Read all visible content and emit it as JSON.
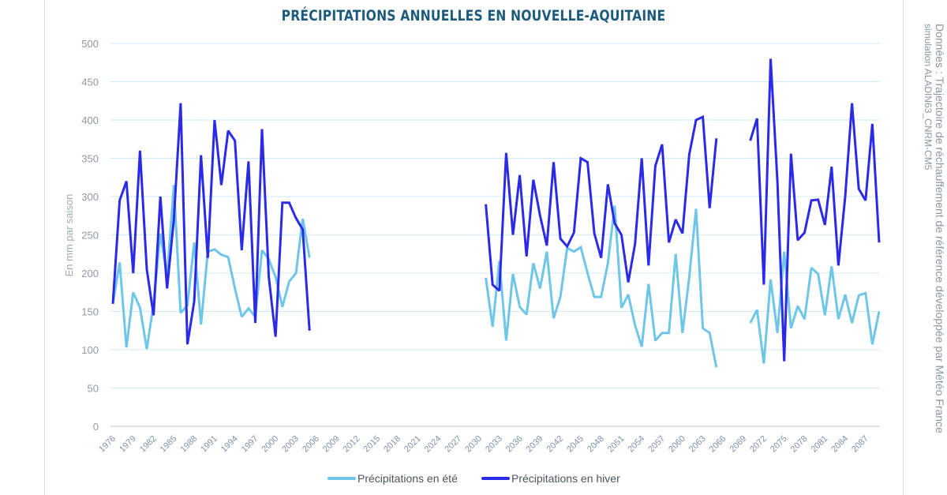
{
  "chart_data": {
    "type": "line",
    "title": "PRÉCIPITATIONS ANNUELLES EN NOUVELLE-AQUITAINE",
    "ylabel": "En mm par saison",
    "xlabel": "",
    "ylim": [
      0,
      500
    ],
    "xlim": [
      1976,
      2089
    ],
    "yticks": [
      0,
      50,
      100,
      150,
      200,
      250,
      300,
      350,
      400,
      450,
      500
    ],
    "xticks": [
      1976,
      1979,
      1982,
      1985,
      1988,
      1991,
      1994,
      1997,
      2000,
      2003,
      2006,
      2009,
      2012,
      2015,
      2018,
      2021,
      2024,
      2027,
      2030,
      2033,
      2036,
      2039,
      2042,
      2045,
      2048,
      2051,
      2054,
      2057,
      2060,
      2063,
      2066,
      2069,
      2072,
      2075,
      2078,
      2081,
      2084,
      2087
    ],
    "grid": true,
    "legend_position": "bottom",
    "source": [
      "Données : Trajectoire de réchauffement de référence développée par Météo France",
      "simulation ALADIN63_CNRM-CM5"
    ],
    "series": [
      {
        "name": "Précipitations en été",
        "color": "#6ec6e8",
        "segments": [
          {
            "x_start": 1976,
            "values": [
              160,
              214,
              103,
              175,
              155,
              101,
              160,
              252,
              195,
              315,
              148,
              158,
              240,
              133,
              228,
              231,
              224,
              221,
              180,
              143,
              154,
              143,
              230,
              218,
              195,
              156,
              189,
              200,
              271,
              220
            ]
          },
          {
            "x_start": 2031,
            "values": [
              194,
              130,
              216,
              112,
              199,
              156,
              146,
              213,
              180,
              228,
              141,
              169,
              233,
              228,
              234,
              200,
              169,
              169,
              213,
              288,
              155,
              172,
              132,
              104,
              186,
              112,
              122,
              122,
              225,
              122,
              195,
              284,
              128,
              122,
              77
            ]
          },
          {
            "x_start": 2070,
            "values": [
              135,
              152,
              82,
              192,
              122,
              228,
              128,
              157,
              140,
              207,
              199,
              145,
              209,
              140,
              172,
              135,
              171,
              174,
              107,
              150
            ]
          }
        ]
      },
      {
        "name": "Précipitations en hiver",
        "color": "#2a2ae8",
        "segments": [
          {
            "x_start": 1976,
            "values": [
              160,
              295,
              320,
              200,
              360,
              205,
              145,
              300,
              180,
              270,
              422,
              107,
              163,
              354,
              220,
              400,
              315,
              386,
              373,
              230,
              346,
              135,
              388,
              195,
              117,
              292,
              292,
              272,
              257,
              125
            ]
          },
          {
            "x_start": 2031,
            "values": [
              290,
              185,
              177,
              357,
              250,
              328,
              222,
              322,
              275,
              236,
              345,
              245,
              235,
              253,
              350,
              345,
              252,
              220,
              316,
              265,
              250,
              188,
              238,
              350,
              210,
              340,
              368,
              240,
              270,
              252,
              355,
              400,
              404,
              285,
              376
            ]
          },
          {
            "x_start": 2070,
            "values": [
              373,
              402,
              185,
              480,
              320,
              85,
              356,
              243,
              253,
              295,
              296,
              263,
              339,
              210,
              300,
              422,
              310,
              295,
              395,
              240
            ]
          }
        ]
      }
    ]
  }
}
